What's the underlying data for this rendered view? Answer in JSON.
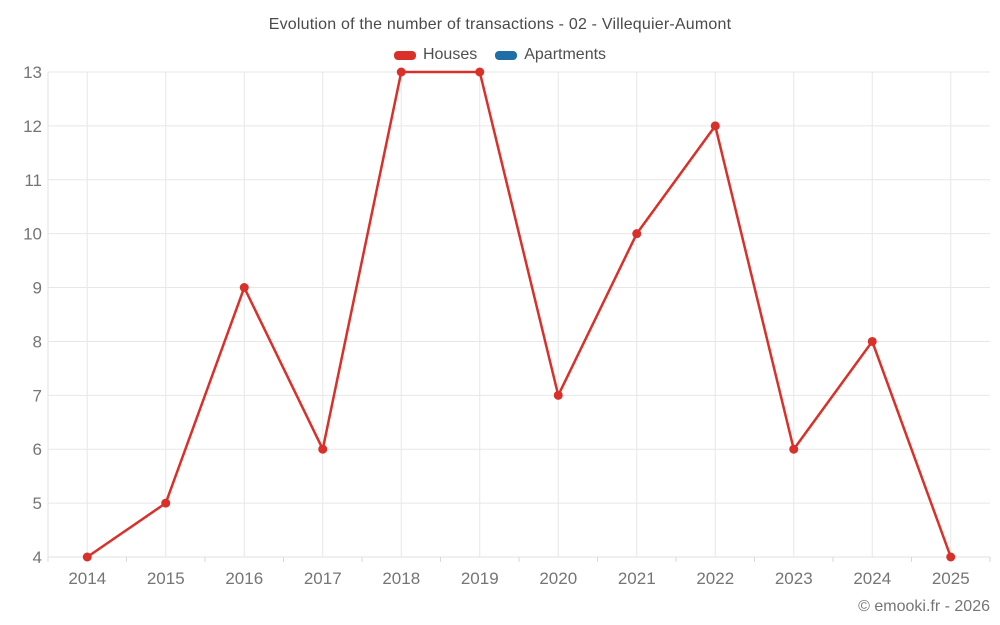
{
  "page": {
    "title": "Evolution of the number of transactions - 02 - Villequier-Aumont",
    "copyright": "© emooki.fr - 2026"
  },
  "legend": {
    "items": [
      {
        "label": "Houses",
        "color": "#d93029"
      },
      {
        "label": "Apartments",
        "color": "#1d6fa5"
      }
    ]
  },
  "chart_data": {
    "type": "line",
    "title": "Evolution of the number of transactions - 02 - Villequier-Aumont",
    "categories": [
      "2014",
      "2015",
      "2016",
      "2017",
      "2018",
      "2019",
      "2020",
      "2021",
      "2022",
      "2023",
      "2024",
      "2025"
    ],
    "series": [
      {
        "name": "Houses",
        "color": "#d93029",
        "values": [
          4,
          5,
          9,
          6,
          13,
          13,
          7,
          10,
          12,
          6,
          8,
          4
        ]
      },
      {
        "name": "Apartments",
        "color": "#1d6fa5",
        "values": []
      }
    ],
    "xlabel": "",
    "ylabel": "",
    "ylim": [
      4,
      13
    ],
    "yticks": [
      4,
      5,
      6,
      7,
      8,
      9,
      10,
      11,
      12,
      13
    ],
    "grid": true,
    "legend_position": "top",
    "grid_color": "#e7e7e7",
    "axis_line_color": "#e2e2e2",
    "tick_color": "#d9d9d9",
    "axis_label_color": "#757575"
  }
}
